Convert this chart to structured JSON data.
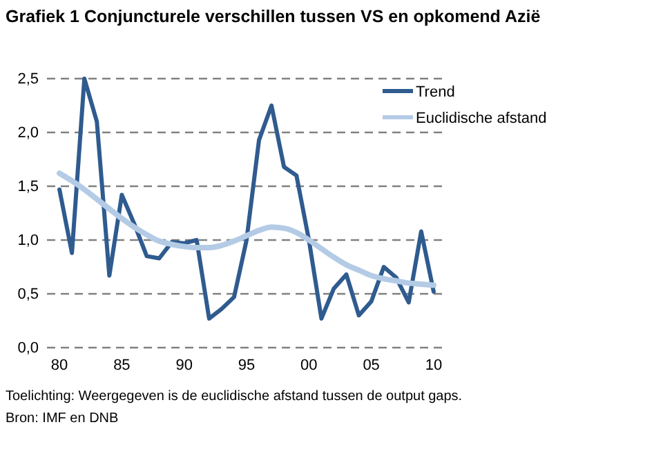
{
  "chart_data": {
    "type": "line",
    "title": "Grafiek 1 Conjuncturele verschillen tussen VS en opkomend Azië",
    "x": [
      1980,
      1981,
      1982,
      1983,
      1984,
      1985,
      1986,
      1987,
      1988,
      1989,
      1990,
      1991,
      1992,
      1993,
      1994,
      1995,
      1996,
      1997,
      1998,
      1999,
      2000,
      2001,
      2002,
      2003,
      2004,
      2005,
      2006,
      2007,
      2008,
      2009,
      2010
    ],
    "series": [
      {
        "name": "Trend",
        "color": "#2f5b8f",
        "values": [
          1.47,
          0.88,
          2.5,
          2.1,
          0.67,
          1.42,
          1.15,
          0.85,
          0.83,
          0.98,
          0.97,
          1.0,
          0.27,
          0.36,
          0.47,
          1.0,
          1.93,
          2.25,
          1.68,
          1.6,
          1.0,
          0.27,
          0.55,
          0.68,
          0.3,
          0.43,
          0.75,
          0.65,
          0.42,
          1.08,
          0.52
        ]
      },
      {
        "name": "Euclidische afstand",
        "color": "#b4cbe6",
        "values": [
          1.62,
          1.55,
          1.47,
          1.38,
          1.29,
          1.2,
          1.12,
          1.05,
          0.99,
          0.96,
          0.94,
          0.93,
          0.93,
          0.95,
          0.99,
          1.04,
          1.09,
          1.12,
          1.11,
          1.07,
          1.0,
          0.92,
          0.84,
          0.77,
          0.72,
          0.67,
          0.64,
          0.62,
          0.6,
          0.59,
          0.58
        ]
      }
    ],
    "xlim": [
      1979,
      2011
    ],
    "xticks": [
      {
        "value": 1980,
        "label": "80"
      },
      {
        "value": 1985,
        "label": "85"
      },
      {
        "value": 1990,
        "label": "90"
      },
      {
        "value": 1995,
        "label": "95"
      },
      {
        "value": 2000,
        "label": "00"
      },
      {
        "value": 2005,
        "label": "05"
      },
      {
        "value": 2010,
        "label": "10"
      }
    ],
    "ylim": [
      0,
      2.5
    ],
    "yticks": [
      {
        "value": 0,
        "label": "0,0"
      },
      {
        "value": 0.5,
        "label": "0,5"
      },
      {
        "value": 1,
        "label": "1,0"
      },
      {
        "value": 1.5,
        "label": "1,5"
      },
      {
        "value": 2,
        "label": "2,0"
      },
      {
        "value": 2.5,
        "label": "2,5"
      }
    ],
    "grid": "y",
    "legend": "top right",
    "marker": "none",
    "line_style": "solid",
    "annotations": [
      "Toelichting: Weergegeven is de euclidische afstand tussen de output gaps.",
      "Bron: IMF en DNB"
    ]
  }
}
